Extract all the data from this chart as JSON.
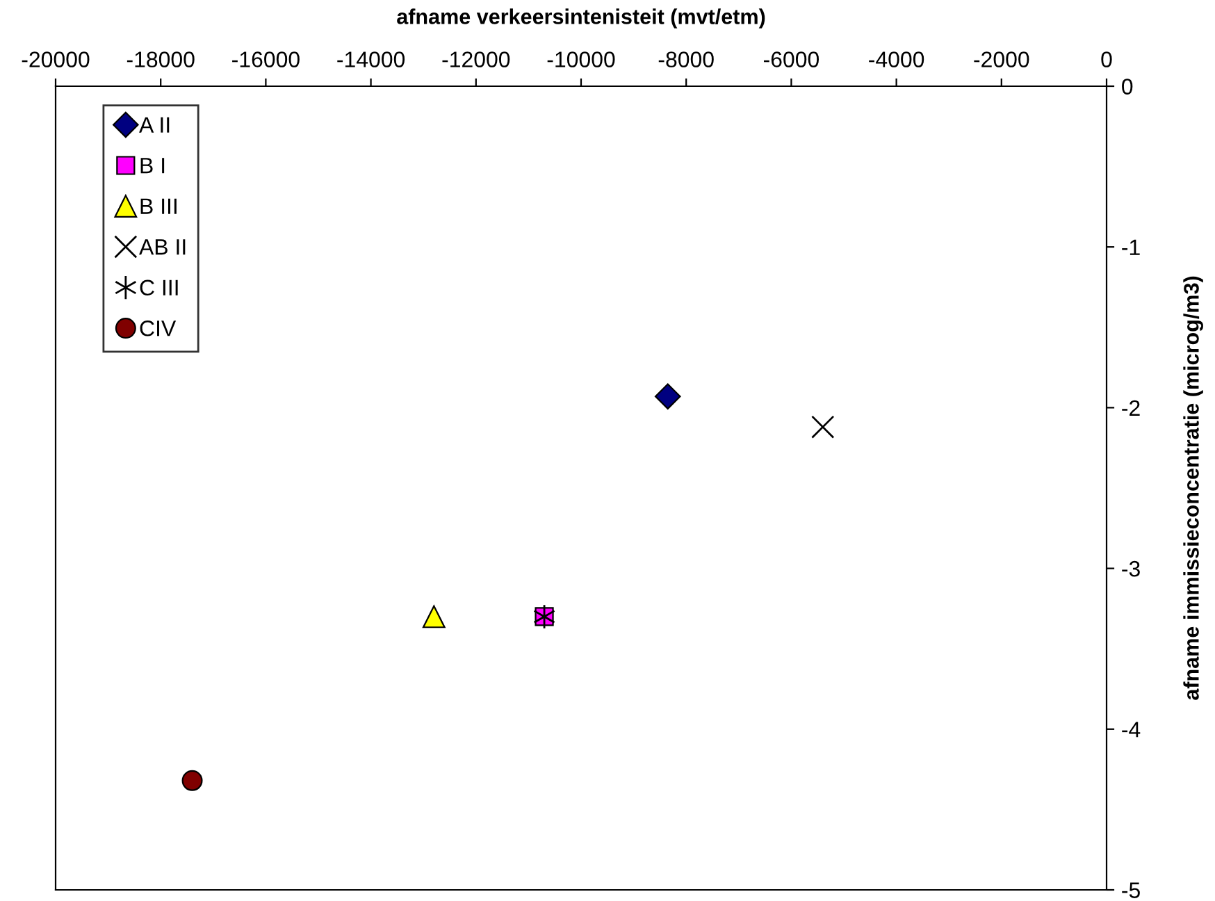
{
  "chart_data": {
    "type": "scatter",
    "xlabel": "afname verkeersintenisteit (mvt/etm)",
    "ylabel": "afname immissieconcentratie (microg/m3)",
    "xlim": [
      -20000,
      0
    ],
    "xticks": [
      -20000,
      -18000,
      -16000,
      -14000,
      -12000,
      -10000,
      -8000,
      -6000,
      -4000,
      -2000,
      0
    ],
    "ylim": [
      -5,
      0
    ],
    "yticks": [
      -5,
      -4,
      -3,
      -2,
      -1,
      0
    ],
    "grid": false,
    "legend": "top left",
    "series": [
      {
        "name": "A II",
        "color": "#000080",
        "marker": "diamond",
        "x": [
          -8350
        ],
        "values": [
          -1.93
        ]
      },
      {
        "name": "B I",
        "color": "#ff00ff",
        "marker": "square",
        "x": [
          -10700
        ],
        "values": [
          -3.3
        ]
      },
      {
        "name": "B III",
        "color": "#ffff00",
        "marker": "triangle",
        "x": [
          -12800
        ],
        "values": [
          -3.3
        ]
      },
      {
        "name": "AB II",
        "color": "#000000",
        "marker": "cross",
        "x": [
          -5400
        ],
        "values": [
          -2.12
        ]
      },
      {
        "name": "C III",
        "color": "#000000",
        "marker": "cross_star",
        "x": [
          -10700
        ],
        "values": [
          -3.3
        ]
      },
      {
        "name": "CIV",
        "color": "#800000",
        "marker": "circle",
        "x": [
          -17400
        ],
        "values": [
          -4.32
        ]
      }
    ]
  }
}
